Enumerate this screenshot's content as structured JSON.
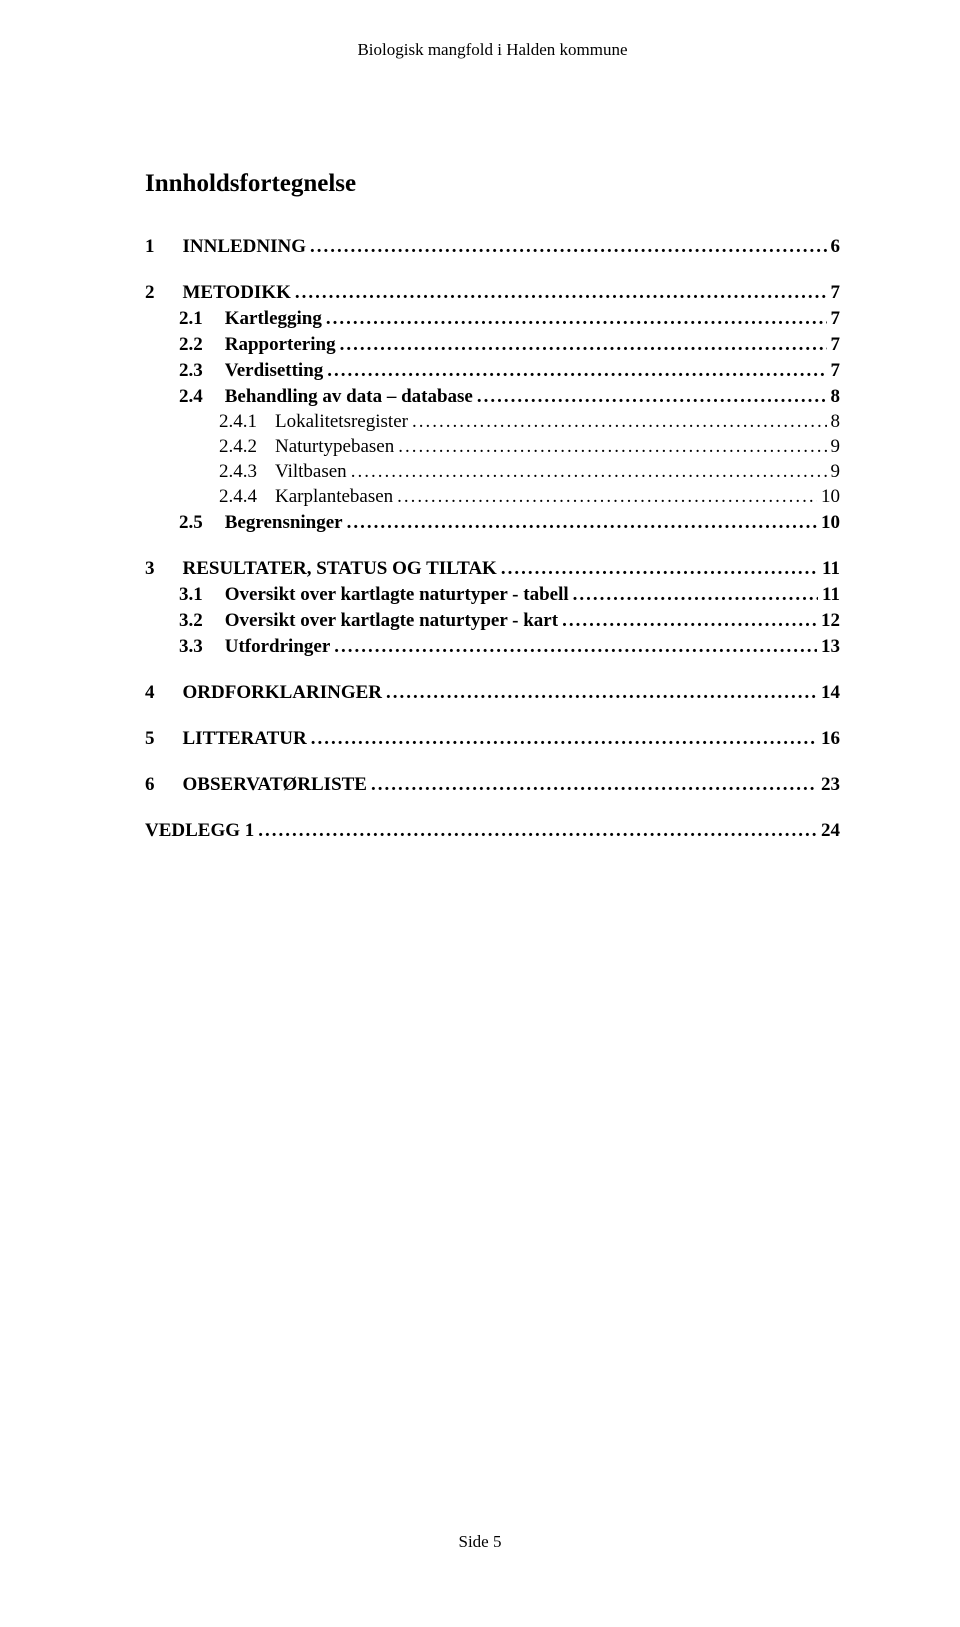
{
  "running_head": "Biologisk mangfold i Halden kommune",
  "toc_title": "Innholdsfortegnelse",
  "page_footer": "Side 5",
  "entries": [
    {
      "level": 0,
      "num": "1",
      "label": "INNLEDNING",
      "page": "6"
    },
    {
      "level": 0,
      "num": "2",
      "label": "METODIKK",
      "page": "7"
    },
    {
      "level": 1,
      "num": "2.1",
      "label": "Kartlegging",
      "page": "7"
    },
    {
      "level": 1,
      "num": "2.2",
      "label": "Rapportering",
      "page": "7"
    },
    {
      "level": 1,
      "num": "2.3",
      "label": "Verdisetting",
      "page": "7"
    },
    {
      "level": 1,
      "num": "2.4",
      "label": "Behandling av data – database",
      "page": "8"
    },
    {
      "level": 2,
      "num": "2.4.1",
      "label": "Lokalitetsregister",
      "page": "8"
    },
    {
      "level": 2,
      "num": "2.4.2",
      "label": "Naturtypebasen",
      "page": "9"
    },
    {
      "level": 2,
      "num": "2.4.3",
      "label": "Viltbasen",
      "page": "9"
    },
    {
      "level": 2,
      "num": "2.4.4",
      "label": "Karplantebasen",
      "page": "10"
    },
    {
      "level": 1,
      "num": "2.5",
      "label": "Begrensninger",
      "page": "10"
    },
    {
      "level": 0,
      "num": "3",
      "label": "RESULTATER, STATUS OG TILTAK",
      "page": "11"
    },
    {
      "level": 1,
      "num": "3.1",
      "label": "Oversikt over kartlagte naturtyper - tabell",
      "page": "11"
    },
    {
      "level": 1,
      "num": "3.2",
      "label": "Oversikt over kartlagte naturtyper - kart",
      "page": "12"
    },
    {
      "level": 1,
      "num": "3.3",
      "label": "Utfordringer",
      "page": "13"
    },
    {
      "level": 0,
      "num": "4",
      "label": "ORDFORKLARINGER",
      "page": "14"
    },
    {
      "level": 0,
      "num": "5",
      "label": "LITTERATUR",
      "page": "16"
    },
    {
      "level": 0,
      "num": "6",
      "label": "OBSERVATØRLISTE",
      "page": "23"
    },
    {
      "level": 0,
      "num": "",
      "label": "VEDLEGG 1",
      "page": "24"
    }
  ]
}
